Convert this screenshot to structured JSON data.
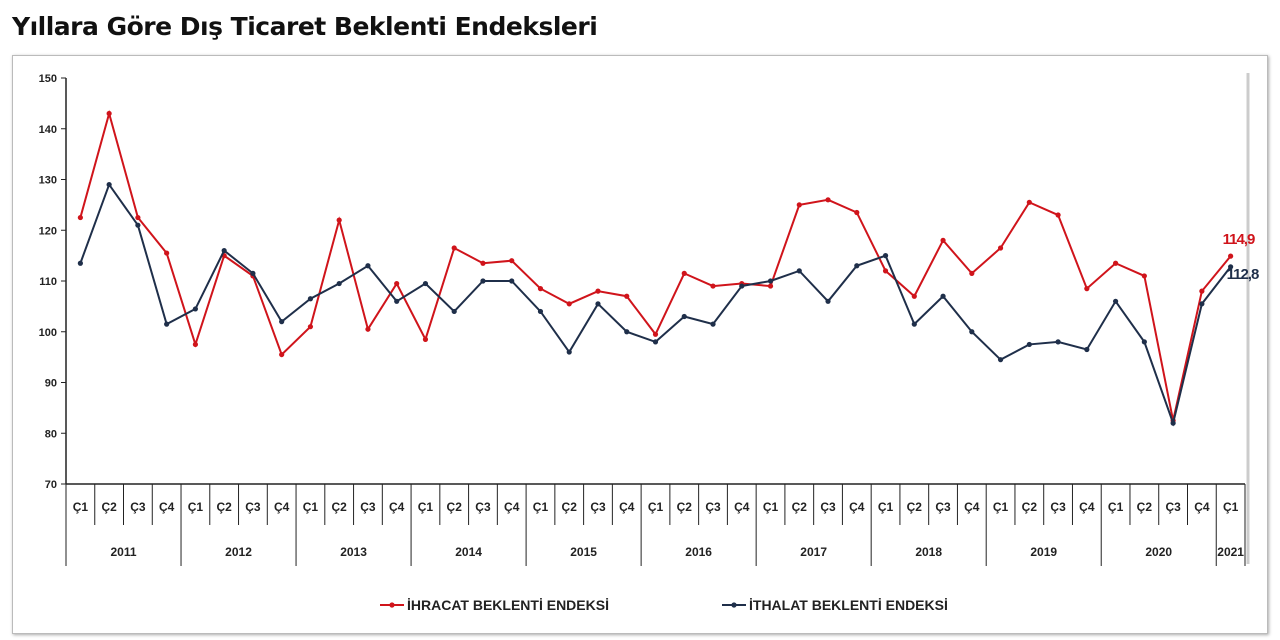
{
  "title": "Yıllara Göre Dış Ticaret Beklenti Endeksleri",
  "chart_data": {
    "type": "line",
    "title": "",
    "ylim": [
      70,
      150
    ],
    "yticks": [
      70,
      80,
      90,
      100,
      110,
      120,
      130,
      140,
      150
    ],
    "grid": false,
    "legend": "bottom",
    "quarter_labels": [
      "Ç1",
      "Ç2",
      "Ç3",
      "Ç4"
    ],
    "years": [
      "2011",
      "2012",
      "2013",
      "2014",
      "2015",
      "2016",
      "2017",
      "2018",
      "2019",
      "2020",
      "2021"
    ],
    "categories": [
      "2011 Ç1",
      "2011 Ç2",
      "2011 Ç3",
      "2011 Ç4",
      "2012 Ç1",
      "2012 Ç2",
      "2012 Ç3",
      "2012 Ç4",
      "2013 Ç1",
      "2013 Ç2",
      "2013 Ç3",
      "2013 Ç4",
      "2014 Ç1",
      "2014 Ç2",
      "2014 Ç3",
      "2014 Ç4",
      "2015 Ç1",
      "2015 Ç2",
      "2015 Ç3",
      "2015 Ç4",
      "2016 Ç1",
      "2016 Ç2",
      "2016 Ç3",
      "2016 Ç4",
      "2017 Ç1",
      "2017 Ç2",
      "2017 Ç3",
      "2017 Ç4",
      "2018 Ç1",
      "2018 Ç2",
      "2018 Ç3",
      "2018 Ç4",
      "2019 Ç1",
      "2019 Ç2",
      "2019 Ç3",
      "2019 Ç4",
      "2020 Ç1",
      "2020 Ç2",
      "2020 Ç3",
      "2020 Ç4",
      "2021 Ç1"
    ],
    "series": [
      {
        "name": "İHRACAT BEKLENTİ ENDEKSİ",
        "color": "#d0141b",
        "last_label": "114,9",
        "values": [
          122.5,
          143,
          122.5,
          115.5,
          97.5,
          115,
          111,
          95.5,
          101,
          122,
          100.5,
          109.5,
          98.5,
          116.5,
          113.5,
          114,
          108.5,
          105.5,
          108,
          107,
          99.5,
          111.5,
          109,
          109.5,
          109,
          125,
          126,
          123.5,
          112,
          107,
          118,
          111.5,
          116.5,
          125.5,
          123,
          108.5,
          113.5,
          111,
          82.5,
          108,
          114.9
        ]
      },
      {
        "name": "İTHALAT BEKLENTİ ENDEKSİ",
        "color": "#1f2f4a",
        "last_label": "112,8",
        "values": [
          113.5,
          129,
          121,
          101.5,
          104.5,
          116,
          111.5,
          102,
          106.5,
          109.5,
          113,
          106,
          109.5,
          104,
          110,
          110,
          104,
          96,
          105.5,
          100,
          98,
          103,
          101.5,
          109,
          110,
          112,
          106,
          113,
          115,
          101.5,
          107,
          100,
          94.5,
          97.5,
          98,
          96.5,
          106,
          98,
          82,
          105.5,
          112.8
        ]
      }
    ]
  }
}
